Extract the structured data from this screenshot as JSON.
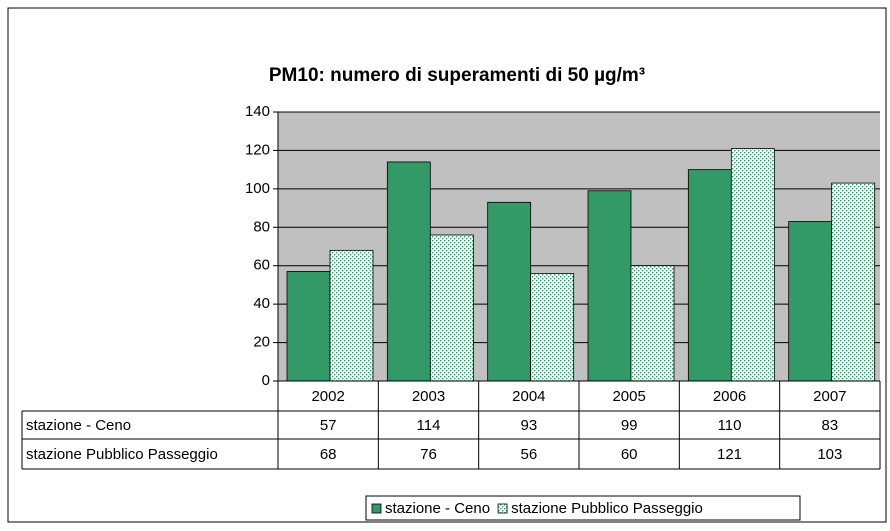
{
  "chart_data": {
    "type": "bar",
    "title": "PM10: numero di superamenti di 50 µg/m³",
    "categories": [
      "2002",
      "2003",
      "2004",
      "2005",
      "2006",
      "2007"
    ],
    "series": [
      {
        "name": "stazione - Ceno",
        "color": "#339966",
        "values": [
          57,
          114,
          93,
          99,
          110,
          83
        ]
      },
      {
        "name": "stazione Pubblico Passeggio",
        "color": "#339966",
        "pattern": "dots",
        "values": [
          68,
          76,
          56,
          60,
          121,
          103
        ]
      }
    ],
    "ylim": [
      0,
      140
    ],
    "yticks": [
      0,
      20,
      40,
      60,
      80,
      100,
      120,
      140
    ],
    "grid": true,
    "legend": "bottom"
  }
}
